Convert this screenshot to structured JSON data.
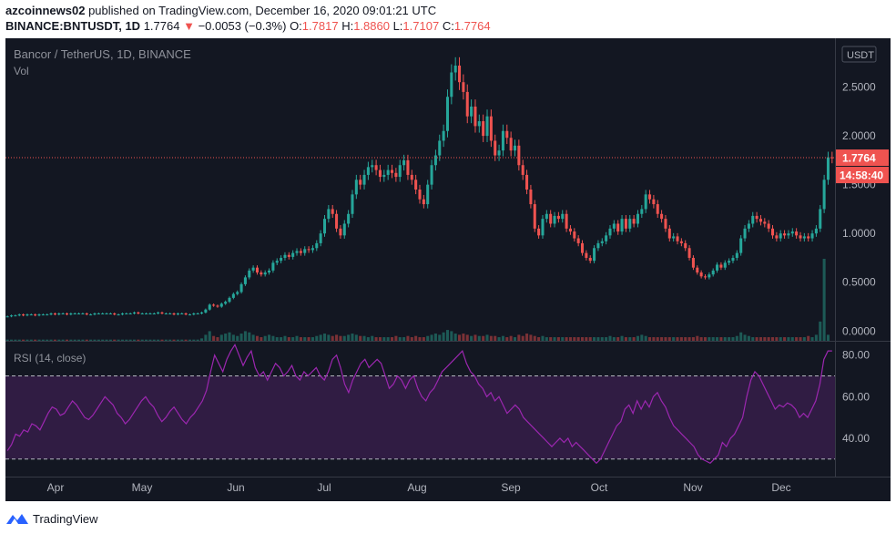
{
  "header": {
    "username": "azcoinnews02",
    "published_text": "published on TradingView.com, December 16, 2020 09:01:21 UTC",
    "symbol": "BINANCE:BNTUSDT, 1D",
    "last_price": "1.7764",
    "change_arrow": "▼",
    "change": "−0.0053 (−0.3%)",
    "o_label": "O:",
    "o_value": "1.7817",
    "h_label": "H:",
    "h_value": "1.8860",
    "l_label": "L:",
    "l_value": "1.7107",
    "c_label": "C:",
    "c_value": "1.7764"
  },
  "footer": {
    "brand": "TradingView",
    "logo_icon": "tradingview-logo-icon"
  },
  "colors": {
    "background": "#131722",
    "up": "#26a69a",
    "down": "#ef5350",
    "rsi_line": "#9c27b0",
    "rsi_band": "#3b1f4f",
    "text": "#b2b5be",
    "grid": "#2a2e39"
  },
  "chart_data": [
    {
      "type": "candlestick",
      "title": "Bancor / TetherUS, 1D, BINANCE",
      "volume_label": "Vol",
      "currency_label": "USDT",
      "ylim": [
        -0.1,
        3.0
      ],
      "yticks": [
        "2.5000",
        "2.0000",
        "1.5000",
        "1.0000",
        "0.5000",
        "0.0000"
      ],
      "ytick_values": [
        2.5,
        2.0,
        1.5,
        1.0,
        0.5,
        0.0
      ],
      "xticks": [
        "Apr",
        "May",
        "Jun",
        "Jul",
        "Aug",
        "Sep",
        "Oct",
        "Nov",
        "Dec"
      ],
      "last_price_label": "1.7764",
      "last_price": 1.7764,
      "countdown_label": "14:58:40",
      "close_series": [
        0.15,
        0.16,
        0.16,
        0.17,
        0.16,
        0.17,
        0.17,
        0.16,
        0.17,
        0.17,
        0.17,
        0.18,
        0.17,
        0.18,
        0.18,
        0.17,
        0.18,
        0.18,
        0.18,
        0.18,
        0.17,
        0.17,
        0.18,
        0.18,
        0.18,
        0.18,
        0.18,
        0.17,
        0.17,
        0.18,
        0.18,
        0.18,
        0.19,
        0.18,
        0.18,
        0.18,
        0.18,
        0.18,
        0.19,
        0.18,
        0.18,
        0.18,
        0.17,
        0.18,
        0.18,
        0.17,
        0.17,
        0.18,
        0.18,
        0.19,
        0.22,
        0.27,
        0.26,
        0.25,
        0.28,
        0.3,
        0.34,
        0.38,
        0.4,
        0.48,
        0.55,
        0.62,
        0.65,
        0.6,
        0.58,
        0.6,
        0.62,
        0.7,
        0.72,
        0.75,
        0.78,
        0.76,
        0.8,
        0.82,
        0.8,
        0.84,
        0.83,
        0.85,
        0.9,
        1.0,
        1.15,
        1.25,
        1.2,
        1.05,
        0.98,
        1.1,
        1.2,
        1.4,
        1.55,
        1.5,
        1.6,
        1.68,
        1.7,
        1.65,
        1.58,
        1.6,
        1.65,
        1.62,
        1.58,
        1.7,
        1.75,
        1.6,
        1.55,
        1.45,
        1.35,
        1.3,
        1.5,
        1.7,
        1.8,
        1.95,
        2.05,
        2.4,
        2.65,
        2.72,
        2.55,
        2.45,
        2.2,
        2.3,
        2.1,
        2.15,
        2.0,
        2.2,
        1.95,
        1.8,
        1.85,
        2.05,
        1.98,
        1.85,
        1.9,
        1.7,
        1.6,
        1.45,
        1.3,
        1.05,
        0.98,
        1.15,
        1.2,
        1.1,
        1.18,
        1.15,
        1.2,
        1.05,
        1.02,
        0.95,
        0.9,
        0.8,
        0.75,
        0.72,
        0.85,
        0.9,
        0.92,
        0.98,
        1.05,
        1.1,
        1.02,
        1.15,
        1.05,
        1.15,
        1.1,
        1.2,
        1.25,
        1.4,
        1.35,
        1.3,
        1.2,
        1.15,
        1.05,
        0.95,
        0.97,
        0.92,
        0.9,
        0.85,
        0.75,
        0.65,
        0.6,
        0.56,
        0.55,
        0.58,
        0.62,
        0.68,
        0.65,
        0.7,
        0.72,
        0.75,
        0.8,
        0.95,
        1.05,
        1.1,
        1.18,
        1.15,
        1.12,
        1.1,
        1.05,
        0.98,
        0.95,
        1.0,
        0.98,
        1.0,
        1.02,
        0.98,
        0.95,
        0.97,
        0.95,
        1.0,
        1.05,
        1.25,
        1.55,
        1.78,
        1.7764
      ],
      "volume_series": [
        0.01,
        0.01,
        0.01,
        0.01,
        0.01,
        0.01,
        0.01,
        0.01,
        0.01,
        0.01,
        0.01,
        0.01,
        0.01,
        0.01,
        0.01,
        0.01,
        0.01,
        0.01,
        0.01,
        0.01,
        0.01,
        0.01,
        0.01,
        0.01,
        0.01,
        0.01,
        0.01,
        0.01,
        0.01,
        0.01,
        0.01,
        0.01,
        0.01,
        0.01,
        0.01,
        0.01,
        0.01,
        0.01,
        0.01,
        0.01,
        0.01,
        0.01,
        0.01,
        0.01,
        0.01,
        0.01,
        0.01,
        0.01,
        0.01,
        0.02,
        0.05,
        0.08,
        0.04,
        0.03,
        0.05,
        0.06,
        0.07,
        0.05,
        0.04,
        0.06,
        0.08,
        0.07,
        0.05,
        0.04,
        0.03,
        0.04,
        0.05,
        0.04,
        0.03,
        0.03,
        0.04,
        0.03,
        0.03,
        0.04,
        0.03,
        0.03,
        0.03,
        0.03,
        0.04,
        0.05,
        0.06,
        0.05,
        0.04,
        0.05,
        0.04,
        0.04,
        0.05,
        0.06,
        0.05,
        0.04,
        0.04,
        0.03,
        0.04,
        0.03,
        0.03,
        0.03,
        0.03,
        0.03,
        0.04,
        0.03,
        0.03,
        0.04,
        0.03,
        0.04,
        0.03,
        0.03,
        0.04,
        0.05,
        0.06,
        0.05,
        0.07,
        0.09,
        0.08,
        0.06,
        0.05,
        0.06,
        0.05,
        0.04,
        0.05,
        0.04,
        0.04,
        0.05,
        0.04,
        0.04,
        0.03,
        0.04,
        0.03,
        0.04,
        0.03,
        0.05,
        0.04,
        0.06,
        0.05,
        0.04,
        0.03,
        0.04,
        0.03,
        0.03,
        0.03,
        0.03,
        0.03,
        0.03,
        0.03,
        0.03,
        0.03,
        0.03,
        0.03,
        0.03,
        0.03,
        0.03,
        0.03,
        0.03,
        0.04,
        0.03,
        0.03,
        0.04,
        0.03,
        0.03,
        0.03,
        0.04,
        0.05,
        0.04,
        0.03,
        0.03,
        0.03,
        0.03,
        0.03,
        0.03,
        0.03,
        0.03,
        0.03,
        0.03,
        0.03,
        0.03,
        0.04,
        0.03,
        0.03,
        0.03,
        0.03,
        0.03,
        0.03,
        0.03,
        0.03,
        0.03,
        0.04,
        0.07,
        0.05,
        0.04,
        0.03,
        0.03,
        0.03,
        0.03,
        0.03,
        0.03,
        0.03,
        0.03,
        0.03,
        0.03,
        0.03,
        0.03,
        0.03,
        0.03,
        0.04,
        0.03,
        0.05,
        0.16,
        0.68,
        0.05
      ],
      "rsi_label": "RSI (14, close)",
      "rsi_yticks": [
        "80.00",
        "60.00",
        "40.00"
      ],
      "rsi_ytick_values": [
        80,
        60,
        40
      ],
      "rsi_bands": [
        70,
        30
      ],
      "rsi_ylim": [
        22,
        86
      ],
      "rsi_series": [
        34,
        37,
        42,
        41,
        44,
        43,
        47,
        46,
        44,
        48,
        52,
        55,
        54,
        51,
        52,
        55,
        58,
        56,
        53,
        50,
        49,
        51,
        54,
        57,
        60,
        58,
        56,
        52,
        50,
        47,
        49,
        52,
        55,
        58,
        60,
        57,
        55,
        51,
        48,
        50,
        53,
        55,
        52,
        49,
        47,
        50,
        52,
        55,
        58,
        63,
        72,
        80,
        76,
        72,
        78,
        82,
        85,
        80,
        75,
        79,
        82,
        74,
        70,
        72,
        68,
        72,
        76,
        74,
        70,
        72,
        75,
        70,
        68,
        72,
        70,
        72,
        74,
        70,
        68,
        72,
        78,
        80,
        74,
        66,
        62,
        68,
        72,
        76,
        78,
        74,
        76,
        78,
        76,
        70,
        64,
        66,
        70,
        68,
        64,
        68,
        70,
        64,
        60,
        58,
        62,
        64,
        68,
        72,
        74,
        76,
        78,
        80,
        82,
        76,
        72,
        70,
        66,
        64,
        60,
        62,
        58,
        60,
        56,
        52,
        54,
        56,
        54,
        50,
        48,
        46,
        44,
        42,
        40,
        38,
        36,
        38,
        40,
        38,
        40,
        36,
        38,
        36,
        34,
        32,
        30,
        28,
        30,
        34,
        38,
        42,
        46,
        48,
        54,
        56,
        52,
        58,
        54,
        58,
        55,
        60,
        62,
        58,
        55,
        50,
        46,
        44,
        42,
        40,
        38,
        36,
        32,
        30,
        29,
        28,
        30,
        32,
        38,
        36,
        40,
        42,
        46,
        50,
        60,
        68,
        72,
        70,
        66,
        62,
        58,
        54,
        56,
        55,
        57,
        56,
        54,
        50,
        52,
        50,
        54,
        58,
        66,
        78,
        82,
        82
      ]
    }
  ]
}
